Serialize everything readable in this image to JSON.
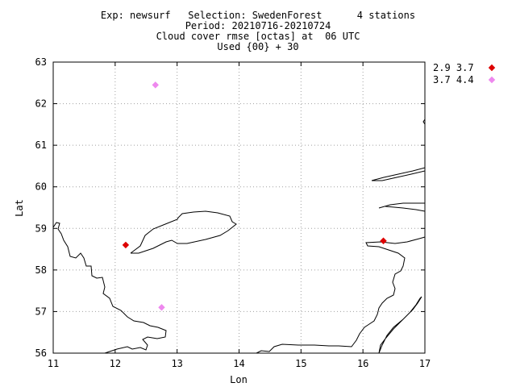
{
  "chart_data": {
    "type": "scatter",
    "title_lines": [
      "Exp: newsurf   Selection: SwedenForest      4 stations",
      "Period: 20210716-20210724",
      "Cloud cover rmse [octas] at  06 UTC",
      "Used {00} + 30"
    ],
    "xlabel": "Lon",
    "ylabel": "Lat",
    "xlim": [
      11,
      17
    ],
    "ylim": [
      56,
      63
    ],
    "xticks": [
      "11",
      "12",
      "13",
      "14",
      "15",
      "16",
      "17"
    ],
    "yticks": [
      "56",
      "57",
      "58",
      "59",
      "60",
      "61",
      "62",
      "63"
    ],
    "grid": true,
    "legend_position": "right",
    "series": [
      {
        "label": "2.9 3.7",
        "color": "#dd0000",
        "points": [
          {
            "lon": 12.17,
            "lat": 58.6
          },
          {
            "lon": 16.33,
            "lat": 58.7
          }
        ]
      },
      {
        "label": "3.7 4.4",
        "color": "#ee88ee",
        "points": [
          {
            "lon": 12.65,
            "lat": 62.45
          },
          {
            "lon": 12.75,
            "lat": 57.1
          }
        ]
      }
    ]
  }
}
